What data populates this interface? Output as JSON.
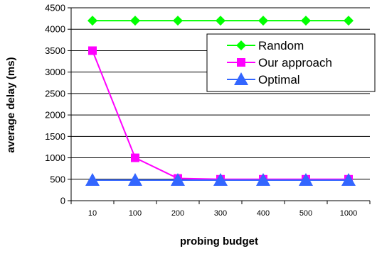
{
  "chart_data": {
    "type": "line",
    "xlabel": "probing budget",
    "ylabel": "average delay (ms)",
    "categories": [
      "10",
      "100",
      "200",
      "300",
      "400",
      "500",
      "1000"
    ],
    "ylim": [
      0,
      4500
    ],
    "yticks": [
      0,
      500,
      1000,
      1500,
      2000,
      2500,
      3000,
      3500,
      4000,
      4500
    ],
    "grid": "horizontal",
    "legend_position": "top-right",
    "series": [
      {
        "name": "Random",
        "color": "#00ff00",
        "marker": "diamond",
        "values": [
          4200,
          4200,
          4200,
          4200,
          4200,
          4200,
          4200
        ]
      },
      {
        "name": "Our approach",
        "color": "#ff00ff",
        "marker": "square",
        "values": [
          3500,
          1000,
          520,
          500,
          500,
          500,
          500
        ]
      },
      {
        "name": "Optimal",
        "color": "#3366ff",
        "marker": "triangle",
        "values": [
          480,
          480,
          480,
          480,
          480,
          480,
          480
        ]
      }
    ]
  }
}
